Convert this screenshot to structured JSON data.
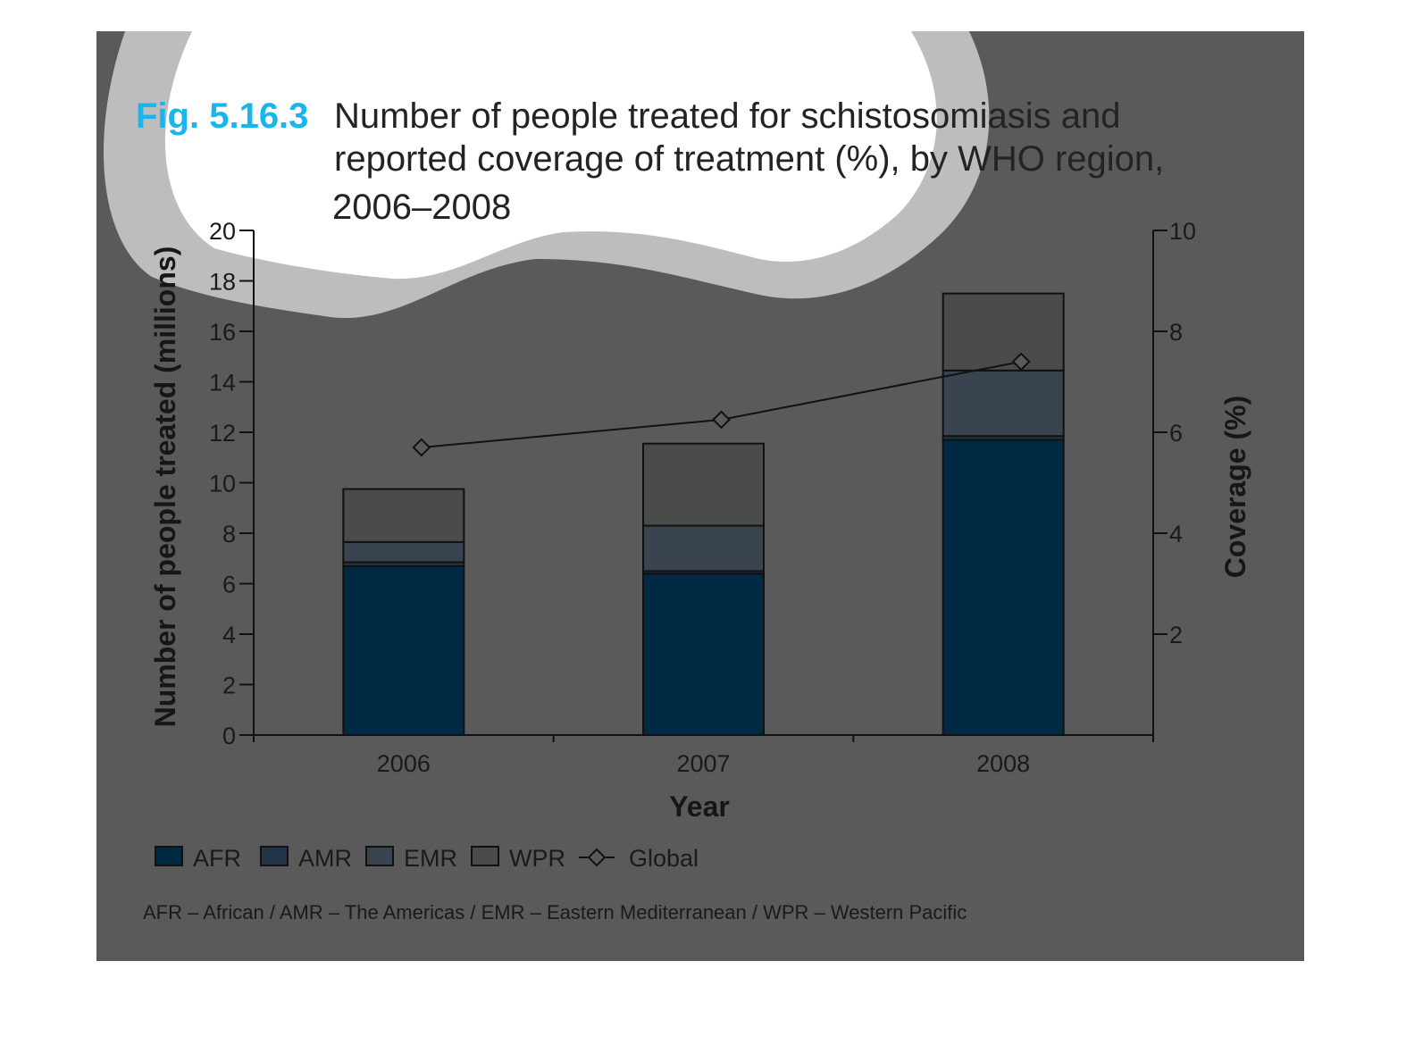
{
  "figure_label": "Fig. 5.16.3",
  "title_lines": [
    "Number of people treated for schistosomiasis and",
    "reported coverage of treatment (%), by WHO region,",
    "2006–2008"
  ],
  "colors": {
    "background": "#5a5a5a",
    "afr": "#002a44",
    "amr": "#233448",
    "emr": "#3a4350",
    "wpr": "#4a4c4b",
    "fig_label": "#19b6ee",
    "line": "#111111"
  },
  "footnote": "AFR – African / AMR – The Americas / EMR – Eastern Mediterranean / WPR – Western Pacific",
  "chart_data": {
    "type": "bar",
    "stacked": true,
    "title": "Number of people treated for schistosomiasis and reported coverage of treatment (%), by WHO region, 2006–2008",
    "xlabel": "Year",
    "ylabel": "Number of people treated (millions)",
    "y2label": "Coverage (%)",
    "categories": [
      "2006",
      "2007",
      "2008"
    ],
    "ylim": [
      0,
      20
    ],
    "y2lim": [
      0,
      10
    ],
    "yticks": [
      "0",
      "2",
      "4",
      "6",
      "8",
      "10",
      "12",
      "14",
      "16",
      "18",
      "20"
    ],
    "y2ticks": [
      "2",
      "4",
      "6",
      "8",
      "10"
    ],
    "legend_position": "bottom",
    "grid": false,
    "series": [
      {
        "name": "AFR",
        "key": "afr",
        "values": [
          6.7,
          6.4,
          11.7
        ]
      },
      {
        "name": "AMR",
        "key": "amr",
        "values": [
          0.15,
          0.1,
          0.15
        ]
      },
      {
        "name": "EMR",
        "key": "emr",
        "values": [
          0.8,
          1.8,
          2.6
        ]
      },
      {
        "name": "WPR",
        "key": "wpr",
        "values": [
          2.1,
          3.25,
          3.05
        ]
      }
    ],
    "line_series": {
      "name": "Global",
      "axis": "right",
      "values": [
        5.7,
        6.25,
        7.4
      ]
    }
  }
}
